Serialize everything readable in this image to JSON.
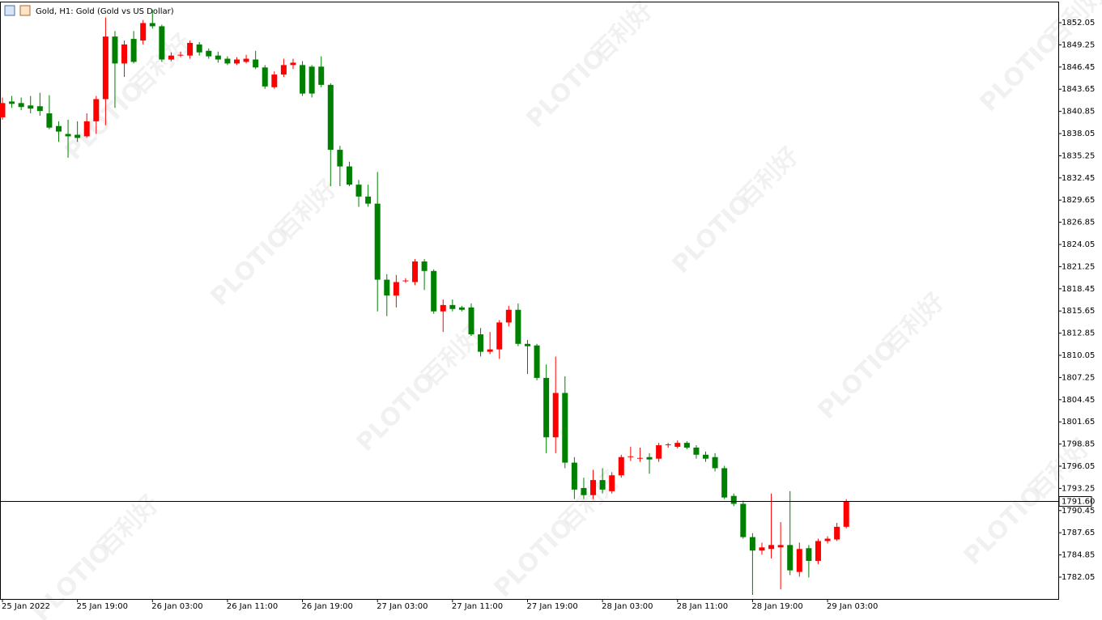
{
  "chart_data": {
    "type": "candlestick",
    "title": "Gold, H1:  Gold (Gold vs US Dollar)",
    "watermarks": [
      "PLOTIO",
      "百利好"
    ],
    "categories": [
      "25 Jan 2022",
      null,
      null,
      null,
      null,
      null,
      null,
      null,
      "25 Jan 19:00",
      null,
      null,
      null,
      null,
      null,
      null,
      null,
      "26 Jan 03:00",
      null,
      null,
      null,
      null,
      null,
      null,
      null,
      "26 Jan 11:00",
      null,
      null,
      null,
      null,
      null,
      null,
      null,
      "26 Jan 19:00",
      null,
      null,
      null,
      null,
      null,
      null,
      null,
      "27 Jan 03:00",
      null,
      null,
      null,
      null,
      null,
      null,
      null,
      "27 Jan 11:00",
      null,
      null,
      null,
      null,
      null,
      null,
      null,
      "27 Jan 19:00",
      null,
      null,
      null,
      null,
      null,
      null,
      null,
      "28 Jan 03:00",
      null,
      null,
      null,
      null,
      null,
      null,
      null,
      "28 Jan 11:00",
      null,
      null,
      null,
      null,
      null,
      null,
      null,
      "28 Jan 19:00",
      null,
      null,
      null,
      null,
      null,
      null,
      null,
      "29 Jan 03:00",
      null,
      null
    ],
    "open": [
      1840.1,
      1842.1,
      1841.9,
      1841.6,
      1841.5,
      1840.6,
      1839.0,
      1838.0,
      1837.9,
      1837.7,
      1839.6,
      1842.4,
      1850.3,
      1846.9,
      1850.0,
      1849.8,
      1852.0,
      1851.6,
      1847.4,
      1847.9,
      1847.9,
      1849.3,
      1848.5,
      1847.9,
      1847.5,
      1846.9,
      1847.1,
      1847.4,
      1846.4,
      1843.9,
      1845.5,
      1846.7,
      1846.7,
      1846.5,
      1846.5,
      1844.2,
      1836.0,
      1833.9,
      1831.6,
      1830.1,
      1829.2,
      1819.6,
      1817.6,
      1819.4,
      1819.3,
      1821.9,
      1820.7,
      1815.6,
      1816.4,
      1816.1,
      1816.1,
      1812.7,
      1810.5,
      1810.8,
      1814.2,
      1815.8,
      1811.5,
      1811.3,
      1807.2,
      1799.7,
      1805.3,
      1796.5,
      1793.3,
      1792.4,
      1794.3,
      1792.9,
      1794.9,
      1797.2,
      1797.0,
      1797.2,
      1797.0,
      1798.7,
      1798.5,
      1799.0,
      1798.4,
      1797.5,
      1797.2,
      1795.8,
      1792.3,
      1791.3,
      1787.1,
      1785.4,
      1785.6,
      1785.8,
      1786.1,
      1782.7,
      1785.7,
      1784.1,
      1786.6,
      1786.8,
      1788.4
    ],
    "high": [
      1842.6,
      1842.8,
      1842.6,
      1842.8,
      1843.2,
      1842.9,
      1839.6,
      1839.8,
      1839.6,
      1840.6,
      1842.8,
      1852.7,
      1851.0,
      1849.8,
      1851.0,
      1852.4,
      1853.7,
      1851.8,
      1848.3,
      1848.4,
      1849.8,
      1849.6,
      1848.8,
      1848.4,
      1847.8,
      1847.7,
      1848.0,
      1848.5,
      1846.7,
      1845.9,
      1847.5,
      1847.5,
      1847.2,
      1846.7,
      1847.8,
      1844.4,
      1836.5,
      1834.5,
      1832.2,
      1831.6,
      1833.2,
      1820.3,
      1820.2,
      1819.8,
      1822.2,
      1822.2,
      1820.9,
      1817.1,
      1817.1,
      1816.3,
      1816.6,
      1813.5,
      1813.0,
      1814.5,
      1816.3,
      1816.6,
      1812.0,
      1811.5,
      1808.9,
      1809.9,
      1807.4,
      1797.2,
      1794.6,
      1795.6,
      1795.8,
      1795.3,
      1797.5,
      1798.5,
      1798.4,
      1797.7,
      1799.0,
      1799.0,
      1799.3,
      1799.2,
      1798.7,
      1797.9,
      1797.7,
      1796.1,
      1792.6,
      1791.7,
      1787.6,
      1786.4,
      1792.6,
      1789.0,
      1792.9,
      1786.4,
      1786.1,
      1786.9,
      1787.2,
      1788.9,
      1791.9
    ],
    "low": [
      1839.8,
      1841.3,
      1841.0,
      1840.6,
      1840.3,
      1838.6,
      1837.0,
      1835.0,
      1837.0,
      1837.5,
      1838.0,
      1839.1,
      1841.3,
      1845.2,
      1846.9,
      1849.3,
      1851.3,
      1847.1,
      1847.2,
      1847.7,
      1847.5,
      1847.9,
      1847.5,
      1847.0,
      1846.7,
      1846.7,
      1846.9,
      1846.2,
      1843.7,
      1843.7,
      1845.2,
      1846.2,
      1842.8,
      1842.6,
      1843.9,
      1831.4,
      1831.4,
      1831.4,
      1828.8,
      1828.8,
      1815.6,
      1815.0,
      1816.1,
      1819.2,
      1818.9,
      1818.3,
      1815.3,
      1813.0,
      1815.6,
      1815.6,
      1812.5,
      1809.9,
      1810.2,
      1809.6,
      1813.7,
      1811.2,
      1807.7,
      1806.9,
      1797.7,
      1797.7,
      1795.8,
      1791.9,
      1791.9,
      1791.9,
      1792.6,
      1792.6,
      1794.6,
      1796.7,
      1796.6,
      1795.1,
      1796.6,
      1798.4,
      1798.3,
      1798.2,
      1797.0,
      1796.6,
      1795.4,
      1791.9,
      1791.0,
      1786.9,
      1779.8,
      1784.9,
      1784.4,
      1780.5,
      1782.3,
      1782.1,
      1782.0,
      1783.7,
      1786.3,
      1786.6,
      1788.2
    ],
    "close": [
      1841.9,
      1841.8,
      1841.4,
      1841.2,
      1840.9,
      1838.8,
      1838.3,
      1837.7,
      1837.5,
      1839.6,
      1842.4,
      1850.3,
      1846.9,
      1849.3,
      1847.1,
      1852.0,
      1851.6,
      1847.4,
      1847.9,
      1848.0,
      1849.5,
      1848.3,
      1847.8,
      1847.4,
      1846.9,
      1847.4,
      1847.5,
      1846.4,
      1844.0,
      1845.5,
      1846.7,
      1847.0,
      1843.1,
      1843.1,
      1844.2,
      1836.0,
      1833.9,
      1831.6,
      1830.1,
      1829.2,
      1819.6,
      1817.6,
      1819.3,
      1819.5,
      1821.9,
      1820.7,
      1815.6,
      1816.4,
      1815.9,
      1815.8,
      1812.7,
      1810.5,
      1810.8,
      1814.2,
      1815.8,
      1811.5,
      1811.2,
      1807.2,
      1799.7,
      1805.3,
      1796.5,
      1793.1,
      1792.4,
      1794.3,
      1793.1,
      1794.9,
      1797.2,
      1797.3,
      1797.1,
      1796.9,
      1798.7,
      1798.8,
      1799.0,
      1798.4,
      1797.5,
      1797.0,
      1795.8,
      1792.1,
      1791.3,
      1787.1,
      1785.4,
      1785.8,
      1786.1,
      1786.1,
      1782.9,
      1785.6,
      1784.1,
      1786.6,
      1786.9,
      1788.4,
      1791.6
    ],
    "up_color": "#ff0000",
    "down_color": "#008000",
    "current_price": {
      "value": 1791.6,
      "label": "1791.60"
    },
    "ylim": [
      1779.29,
      1854.71
    ],
    "yticks": [
      1852.05,
      1849.25,
      1846.45,
      1843.65,
      1840.85,
      1838.05,
      1835.25,
      1832.45,
      1829.65,
      1826.85,
      1824.05,
      1821.25,
      1818.45,
      1815.65,
      1812.85,
      1810.05,
      1807.25,
      1804.45,
      1801.65,
      1798.85,
      1796.05,
      1793.25,
      1790.45,
      1787.65,
      1784.85,
      1782.05
    ],
    "grid": false
  }
}
